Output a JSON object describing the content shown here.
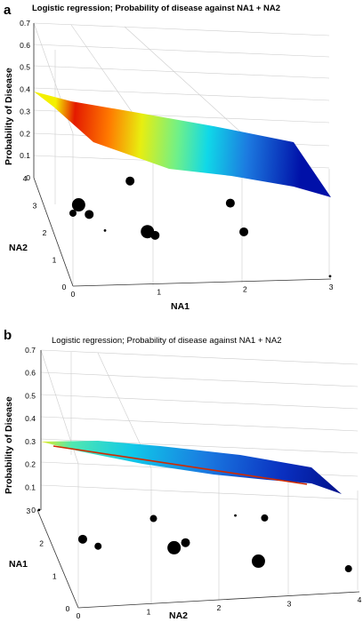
{
  "chart_data": [
    {
      "type": "surface3d",
      "panel_label": "a",
      "title": "Logistic regression; Probability of disease against NA1 + NA2",
      "xlabel": "NA1",
      "ylabel": "NA2",
      "zlabel": "Probability of Disease",
      "x_ticks": [
        "0",
        "1",
        "2",
        "3"
      ],
      "y_ticks": [
        "0",
        "1",
        "2",
        "3",
        "4"
      ],
      "z_ticks": [
        "0",
        "0.1",
        "0.2",
        "0.3",
        "0.4",
        "0.5",
        "0.6",
        "0.7"
      ],
      "zlim": [
        0,
        0.7
      ],
      "colormap": "jet",
      "grid": true,
      "points": [
        {
          "x": 0.0,
          "y": 0.0,
          "z": 0.33,
          "size": "small"
        },
        {
          "x": 0.1,
          "y": 0.3,
          "z": 0.33,
          "size": "large"
        },
        {
          "x": 0.2,
          "y": 0.1,
          "z": 0.31,
          "size": "medium"
        },
        {
          "x": 0.8,
          "y": 1.2,
          "z": 0.32,
          "size": "medium"
        },
        {
          "x": 0.9,
          "y": 0.3,
          "z": 0.2,
          "size": "large"
        },
        {
          "x": 1.0,
          "y": 0.4,
          "z": 0.17,
          "size": "medium"
        },
        {
          "x": 2.0,
          "y": 1.5,
          "z": 0.17,
          "size": "medium"
        },
        {
          "x": 2.1,
          "y": 1.0,
          "z": 0.1,
          "size": "medium"
        },
        {
          "x": 0.6,
          "y": 2.0,
          "z": 0.0,
          "size": "tiny"
        },
        {
          "x": 3.0,
          "y": 0.1,
          "z": 0.0,
          "size": "tiny"
        }
      ]
    },
    {
      "type": "surface3d",
      "panel_label": "b",
      "title": "Logistic regression; Probability of disease against NA1 + NA2",
      "xlabel": "NA2",
      "ylabel": "NA1",
      "zlabel": "Probability of Disease",
      "x_ticks": [
        "0",
        "1",
        "2",
        "3",
        "4"
      ],
      "y_ticks": [
        "0",
        "1",
        "2",
        "3"
      ],
      "z_ticks": [
        "0",
        "0.1",
        "0.2",
        "0.3",
        "0.4",
        "0.5",
        "0.6",
        "0.7"
      ],
      "zlim": [
        0,
        0.7
      ],
      "colormap": "jet",
      "grid": true,
      "points": [
        {
          "x": 0.1,
          "y": 0.2,
          "z": 0.27,
          "size": "medium"
        },
        {
          "x": 0.3,
          "y": 0.1,
          "z": 0.25,
          "size": "small"
        },
        {
          "x": 1.2,
          "y": 0.7,
          "z": 0.27,
          "size": "small"
        },
        {
          "x": 1.4,
          "y": 0.2,
          "z": 0.21,
          "size": "large"
        },
        {
          "x": 1.6,
          "y": 0.4,
          "z": 0.2,
          "size": "medium"
        },
        {
          "x": 2.8,
          "y": 0.8,
          "z": 0.23,
          "size": "small"
        },
        {
          "x": 2.6,
          "y": 0.2,
          "z": 0.13,
          "size": "large"
        },
        {
          "x": 3.9,
          "y": 0.3,
          "z": 0.06,
          "size": "small"
        },
        {
          "x": 2.7,
          "y": 2.5,
          "z": 0.0,
          "size": "tiny"
        },
        {
          "x": 0.0,
          "y": 3.0,
          "z": 0.0,
          "size": "tiny"
        }
      ]
    }
  ]
}
